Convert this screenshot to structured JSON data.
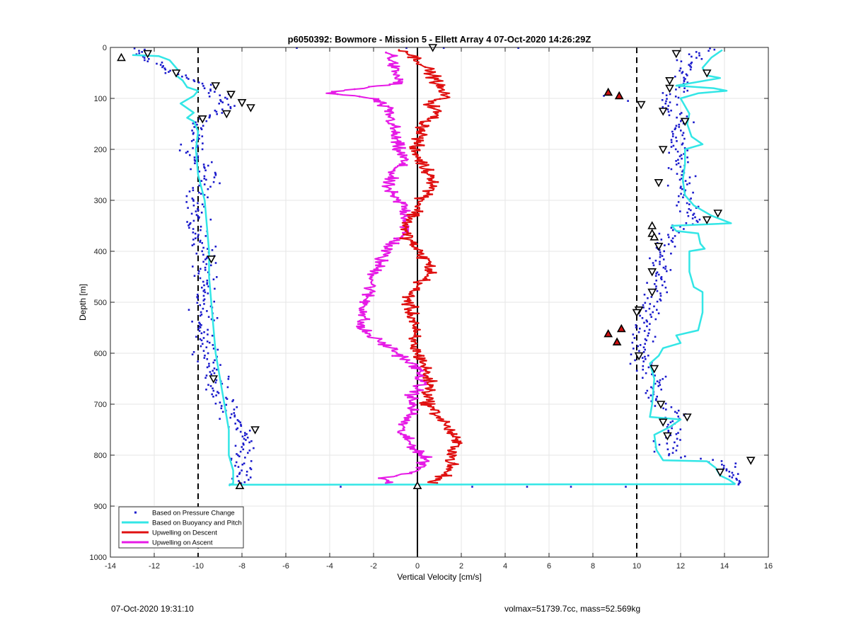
{
  "footer": {
    "timestamp": "07-Oct-2020 19:31:10",
    "info": "volmax=51739.7cc, mass=52.569kg"
  },
  "chart_data": {
    "type": "scatter",
    "title": "p6050392: Bowmore - Mission 5 - Ellett Array 4 07-Oct-2020 14:26:29Z",
    "xlabel": "Vertical Velocity [cm/s]",
    "ylabel": "Depth [m]",
    "xlim": [
      -14,
      16
    ],
    "ylim": [
      0,
      1000
    ],
    "y_reversed": true,
    "xticks": [
      -14,
      -12,
      -10,
      -8,
      -6,
      -4,
      -2,
      0,
      2,
      4,
      6,
      8,
      10,
      12,
      14,
      16
    ],
    "yticks": [
      0,
      100,
      200,
      300,
      400,
      500,
      600,
      700,
      800,
      900,
      1000
    ],
    "grid": true,
    "legend_position": "bottom-left",
    "colors": {
      "pressure": "#1a1acc",
      "buoyancy": "#33e6e6",
      "descent": "#e01010",
      "ascent": "#e61ae6"
    },
    "reference_lines": [
      {
        "x": -10,
        "style": "dashed"
      },
      {
        "x": 0,
        "style": "solid"
      },
      {
        "x": 10,
        "style": "dashed"
      }
    ],
    "series": [
      {
        "name": "Based on Pressure Change",
        "style": "dots",
        "color": "#1a1acc",
        "descent_profile": [
          [
            0,
            -13.0
          ],
          [
            20,
            -12.5
          ],
          [
            50,
            -11.0
          ],
          [
            80,
            -9.5
          ],
          [
            100,
            -9.0
          ],
          [
            120,
            -8.5
          ],
          [
            140,
            -9.8
          ],
          [
            170,
            -10.2
          ],
          [
            200,
            -10.3
          ],
          [
            260,
            -9.5
          ],
          [
            300,
            -10.0
          ],
          [
            350,
            -10.2
          ],
          [
            400,
            -9.6
          ],
          [
            450,
            -9.8
          ],
          [
            500,
            -9.8
          ],
          [
            550,
            -9.7
          ],
          [
            600,
            -9.5
          ],
          [
            650,
            -9.2
          ],
          [
            700,
            -8.9
          ],
          [
            740,
            -8.2
          ],
          [
            770,
            -7.8
          ],
          [
            800,
            -8.0
          ],
          [
            850,
            -8.0
          ],
          [
            860,
            -8.2
          ]
        ],
        "ascent_profile": [
          [
            860,
            14.8
          ],
          [
            840,
            14.3
          ],
          [
            820,
            14.0
          ],
          [
            810,
            13.5
          ],
          [
            800,
            11.5
          ],
          [
            760,
            11.4
          ],
          [
            740,
            11.7
          ],
          [
            720,
            11.8
          ],
          [
            700,
            11.0
          ],
          [
            650,
            10.8
          ],
          [
            610,
            10.2
          ],
          [
            580,
            10.3
          ],
          [
            560,
            10.2
          ],
          [
            540,
            10.3
          ],
          [
            520,
            10.5
          ],
          [
            500,
            10.9
          ],
          [
            450,
            11.0
          ],
          [
            400,
            11.2
          ],
          [
            360,
            11.5
          ],
          [
            340,
            12.8
          ],
          [
            320,
            12.5
          ],
          [
            300,
            12.3
          ],
          [
            250,
            12.0
          ],
          [
            200,
            11.8
          ],
          [
            150,
            12.0
          ],
          [
            110,
            11.5
          ],
          [
            80,
            12.0
          ],
          [
            50,
            12.2
          ],
          [
            20,
            12.6
          ],
          [
            0,
            13.2
          ]
        ],
        "outliers": [
          [
            1,
            -5.5
          ],
          [
            1,
            -0.5
          ],
          [
            1,
            1.2
          ],
          [
            1,
            4.6
          ],
          [
            95,
            8.5
          ],
          [
            105,
            9.6
          ],
          [
            862,
            -3.5
          ],
          [
            862,
            2.5
          ],
          [
            862,
            5.0
          ],
          [
            862,
            7.0
          ],
          [
            862,
            9.5
          ]
        ]
      },
      {
        "name": "Based on Buoyancy and Pitch",
        "style": "line",
        "color": "#33e6e6",
        "descent": [
          [
            15,
            -13.0
          ],
          [
            17,
            -11.8
          ],
          [
            25,
            -11.3
          ],
          [
            45,
            -10.9
          ],
          [
            55,
            -11.0
          ],
          [
            65,
            -10.7
          ],
          [
            78,
            -10.5
          ],
          [
            85,
            -10.0
          ],
          [
            95,
            -10.2
          ],
          [
            110,
            -10.8
          ],
          [
            128,
            -10.2
          ],
          [
            138,
            -10.5
          ],
          [
            145,
            -10.2
          ],
          [
            165,
            -10.0
          ],
          [
            200,
            -10.1
          ],
          [
            250,
            -10.0
          ],
          [
            300,
            -9.7
          ],
          [
            350,
            -9.6
          ],
          [
            400,
            -9.5
          ],
          [
            450,
            -9.5
          ],
          [
            500,
            -9.4
          ],
          [
            550,
            -9.3
          ],
          [
            600,
            -9.2
          ],
          [
            650,
            -9.0
          ],
          [
            700,
            -8.8
          ],
          [
            750,
            -8.6
          ],
          [
            800,
            -8.6
          ],
          [
            830,
            -8.4
          ],
          [
            855,
            -8.4
          ],
          [
            860,
            -8.6
          ]
        ],
        "crossing": [
          [
            858,
            -8.6
          ],
          [
            857,
            14.5
          ]
        ],
        "ascent": [
          [
            857,
            14.5
          ],
          [
            848,
            14.2
          ],
          [
            840,
            13.8
          ],
          [
            825,
            13.6
          ],
          [
            812,
            13.2
          ],
          [
            810,
            11.2
          ],
          [
            790,
            10.9
          ],
          [
            760,
            10.8
          ],
          [
            745,
            11.5
          ],
          [
            730,
            12.0
          ],
          [
            725,
            10.6
          ],
          [
            700,
            10.7
          ],
          [
            650,
            10.8
          ],
          [
            620,
            10.6
          ],
          [
            605,
            11.0
          ],
          [
            590,
            11.2
          ],
          [
            580,
            12.0
          ],
          [
            565,
            11.8
          ],
          [
            555,
            12.8
          ],
          [
            520,
            13.0
          ],
          [
            480,
            13.0
          ],
          [
            470,
            12.6
          ],
          [
            440,
            12.4
          ],
          [
            400,
            12.4
          ],
          [
            395,
            13.1
          ],
          [
            385,
            12.9
          ],
          [
            365,
            12.8
          ],
          [
            360,
            11.8
          ],
          [
            350,
            11.6
          ],
          [
            345,
            14.3
          ],
          [
            330,
            13.4
          ],
          [
            310,
            12.6
          ],
          [
            290,
            12.2
          ],
          [
            260,
            12.1
          ],
          [
            230,
            12.2
          ],
          [
            200,
            12.2
          ],
          [
            190,
            13.0
          ],
          [
            175,
            12.5
          ],
          [
            150,
            12.3
          ],
          [
            130,
            12.4
          ],
          [
            100,
            12.0
          ],
          [
            90,
            12.8
          ],
          [
            85,
            14.1
          ],
          [
            80,
            13.5
          ],
          [
            75,
            11.8
          ],
          [
            60,
            13.8
          ],
          [
            55,
            13.2
          ],
          [
            40,
            13.0
          ],
          [
            20,
            13.4
          ],
          [
            5,
            13.9
          ]
        ]
      },
      {
        "name": "Upwelling on Descent",
        "style": "line",
        "color": "#e01010",
        "profile": [
          [
            5,
            -0.6
          ],
          [
            30,
            0.2
          ],
          [
            60,
            0.8
          ],
          [
            80,
            1.0
          ],
          [
            95,
            1.3
          ],
          [
            110,
            0.6
          ],
          [
            130,
            0.9
          ],
          [
            150,
            0.3
          ],
          [
            170,
            0.2
          ],
          [
            200,
            -0.2
          ],
          [
            220,
            0.1
          ],
          [
            240,
            0.4
          ],
          [
            260,
            0.8
          ],
          [
            280,
            0.6
          ],
          [
            300,
            0.2
          ],
          [
            320,
            0.0
          ],
          [
            340,
            -0.4
          ],
          [
            360,
            -0.6
          ],
          [
            380,
            -0.3
          ],
          [
            400,
            0.0
          ],
          [
            420,
            0.5
          ],
          [
            440,
            0.6
          ],
          [
            460,
            0.2
          ],
          [
            480,
            -0.3
          ],
          [
            500,
            -0.4
          ],
          [
            520,
            -0.3
          ],
          [
            540,
            -0.1
          ],
          [
            560,
            -0.2
          ],
          [
            580,
            -0.2
          ],
          [
            600,
            0.0
          ],
          [
            620,
            0.3
          ],
          [
            640,
            0.4
          ],
          [
            660,
            0.6
          ],
          [
            680,
            0.5
          ],
          [
            700,
            0.5
          ],
          [
            720,
            0.9
          ],
          [
            740,
            1.3
          ],
          [
            760,
            1.6
          ],
          [
            780,
            1.8
          ],
          [
            800,
            1.6
          ],
          [
            820,
            1.5
          ],
          [
            840,
            1.2
          ],
          [
            855,
            0.6
          ]
        ]
      },
      {
        "name": "Upwelling on Ascent",
        "style": "line",
        "color": "#e61ae6",
        "profile": [
          [
            10,
            -1.2
          ],
          [
            40,
            -1.1
          ],
          [
            70,
            -0.8
          ],
          [
            85,
            -3.5
          ],
          [
            90,
            -4.0
          ],
          [
            100,
            -2.0
          ],
          [
            120,
            -1.4
          ],
          [
            140,
            -1.2
          ],
          [
            160,
            -1.1
          ],
          [
            180,
            -1.0
          ],
          [
            200,
            -0.9
          ],
          [
            220,
            -0.6
          ],
          [
            250,
            -1.2
          ],
          [
            270,
            -1.4
          ],
          [
            290,
            -1.2
          ],
          [
            310,
            -0.6
          ],
          [
            330,
            -0.5
          ],
          [
            350,
            -0.5
          ],
          [
            370,
            -0.7
          ],
          [
            390,
            -1.3
          ],
          [
            410,
            -1.6
          ],
          [
            430,
            -1.8
          ],
          [
            450,
            -2.0
          ],
          [
            470,
            -2.1
          ],
          [
            490,
            -2.3
          ],
          [
            510,
            -2.4
          ],
          [
            530,
            -2.5
          ],
          [
            550,
            -2.6
          ],
          [
            570,
            -2.0
          ],
          [
            590,
            -1.2
          ],
          [
            610,
            -0.6
          ],
          [
            630,
            0.0
          ],
          [
            650,
            0.2
          ],
          [
            670,
            0.0
          ],
          [
            690,
            -0.3
          ],
          [
            710,
            -0.2
          ],
          [
            730,
            -0.5
          ],
          [
            750,
            -0.8
          ],
          [
            770,
            -0.5
          ],
          [
            790,
            0.0
          ],
          [
            810,
            0.4
          ],
          [
            830,
            0.1
          ],
          [
            845,
            -1.5
          ],
          [
            855,
            -1.2
          ]
        ]
      }
    ],
    "markers": {
      "down_triangles": [
        [
          0,
          0.7
        ],
        [
          12,
          -12.3
        ],
        [
          12,
          11.8
        ],
        [
          50,
          -11.0
        ],
        [
          50,
          13.2
        ],
        [
          65,
          11.5
        ],
        [
          75,
          -9.2
        ],
        [
          80,
          11.5
        ],
        [
          92,
          -8.5
        ],
        [
          108,
          -8.0
        ],
        [
          112,
          10.2
        ],
        [
          118,
          -7.6
        ],
        [
          125,
          11.2
        ],
        [
          130,
          -8.7
        ],
        [
          140,
          -9.8
        ],
        [
          145,
          12.2
        ],
        [
          200,
          11.2
        ],
        [
          265,
          11.0
        ],
        [
          325,
          13.7
        ],
        [
          338,
          13.2
        ],
        [
          390,
          11.0
        ],
        [
          415,
          -9.4
        ],
        [
          440,
          10.7
        ],
        [
          480,
          10.7
        ],
        [
          515,
          10.1
        ],
        [
          520,
          10.0
        ],
        [
          605,
          10.1
        ],
        [
          630,
          10.8
        ],
        [
          650,
          -9.3
        ],
        [
          700,
          11.1
        ],
        [
          725,
          12.3
        ],
        [
          735,
          11.2
        ],
        [
          750,
          -7.4
        ],
        [
          762,
          11.4
        ],
        [
          810,
          15.2
        ],
        [
          833,
          13.8
        ]
      ],
      "up_triangles": [
        [
          20,
          -13.5
        ],
        [
          350,
          10.7
        ],
        [
          365,
          10.7
        ],
        [
          372,
          10.8
        ],
        [
          860,
          -8.1
        ],
        [
          860,
          0.0
        ]
      ],
      "red_triangles": [
        [
          88,
          8.7
        ],
        [
          95,
          9.2
        ],
        [
          552,
          9.3
        ],
        [
          562,
          8.7
        ],
        [
          578,
          9.1
        ]
      ]
    }
  }
}
